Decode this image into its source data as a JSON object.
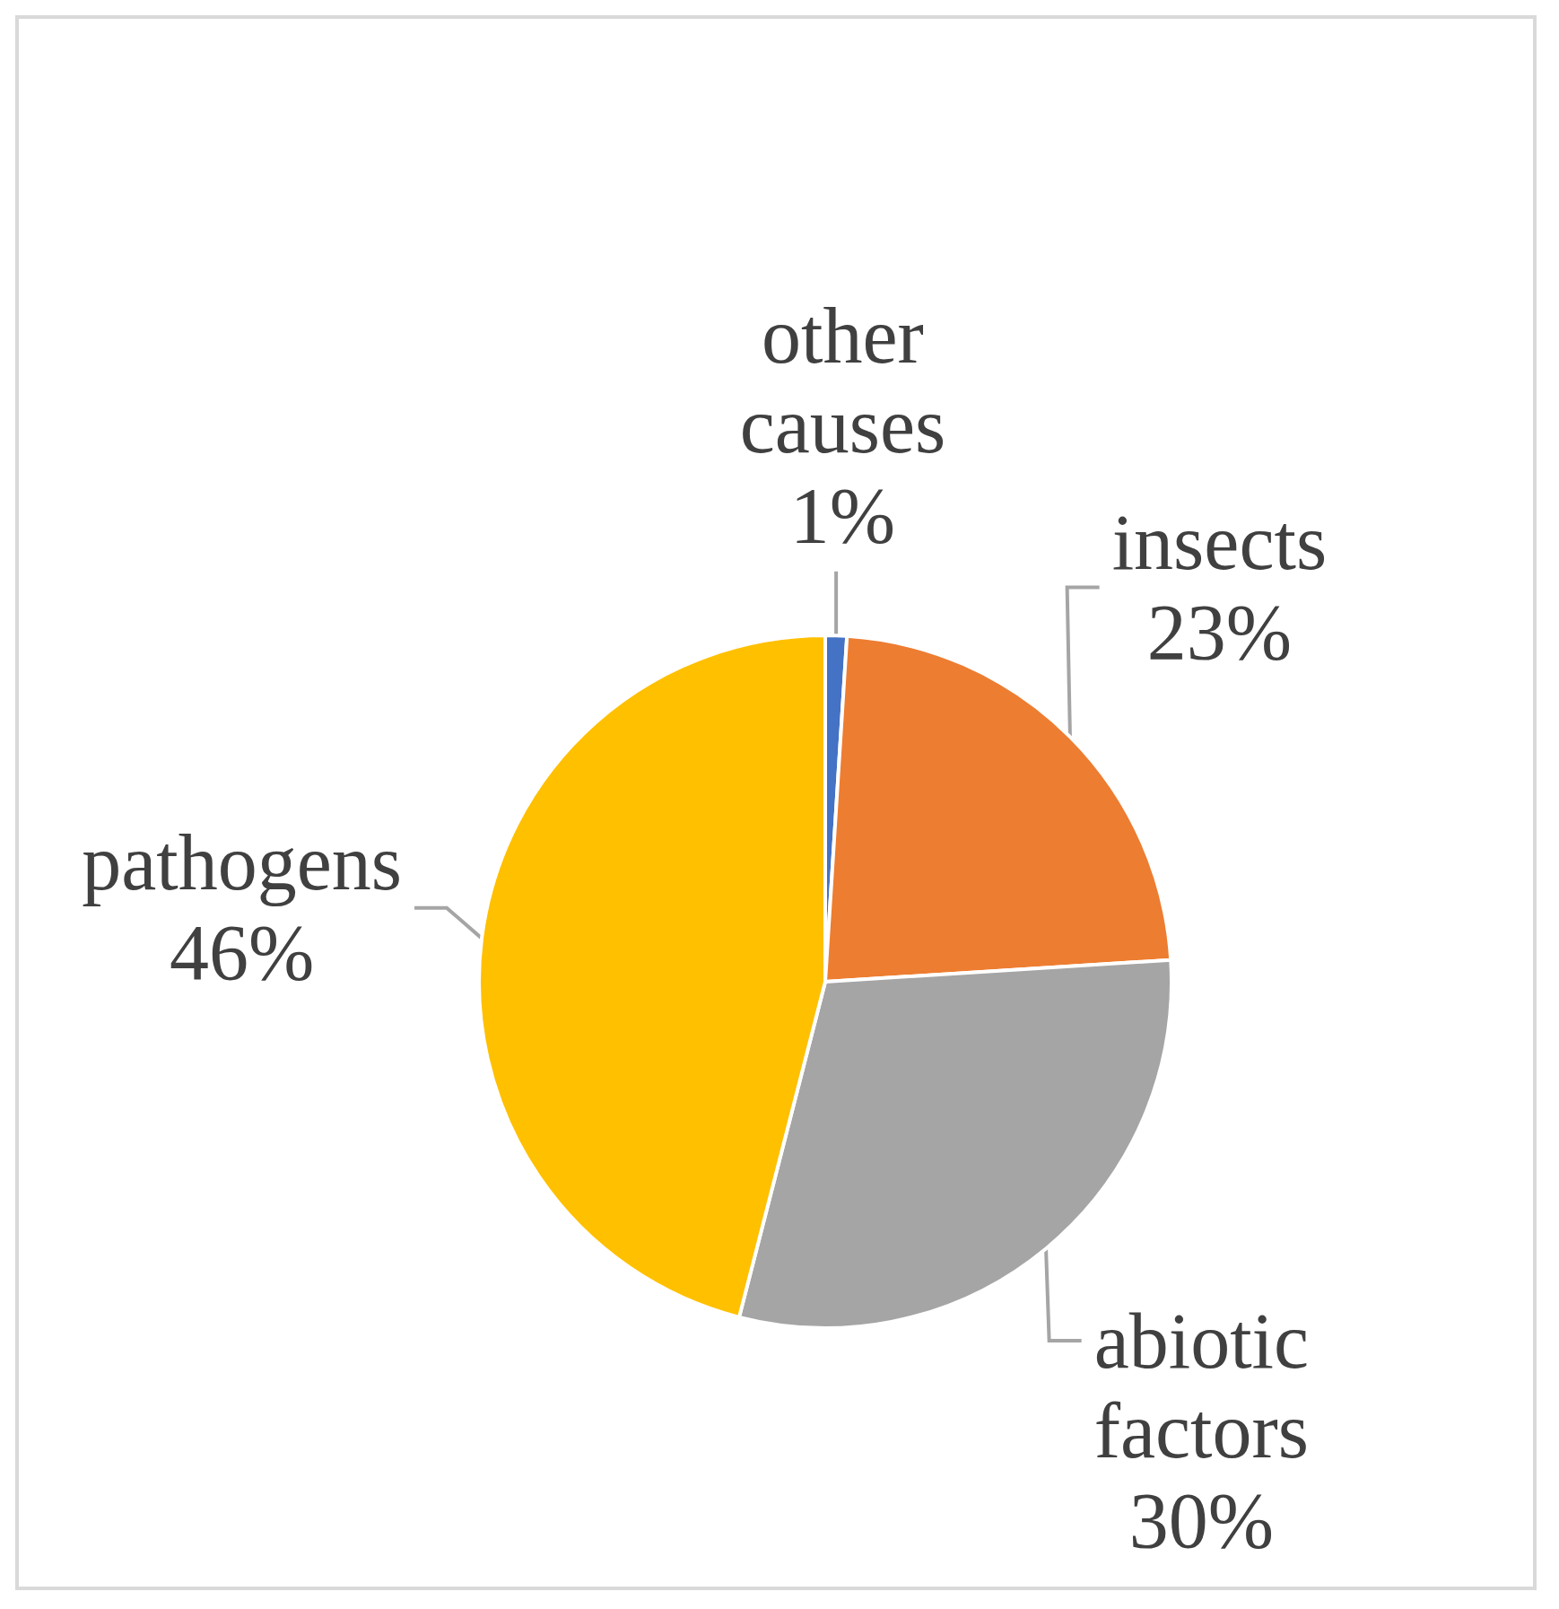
{
  "chart_data": {
    "type": "pie",
    "categories": [
      "other causes",
      "insects",
      "abiotic factors",
      "pathogens"
    ],
    "values": [
      1,
      23,
      30,
      46
    ],
    "colors": [
      "#4472c4",
      "#ed7d31",
      "#a5a5a5",
      "#ffc000"
    ],
    "value_labels": [
      "1%",
      "23%",
      "30%",
      "46%"
    ]
  }
}
